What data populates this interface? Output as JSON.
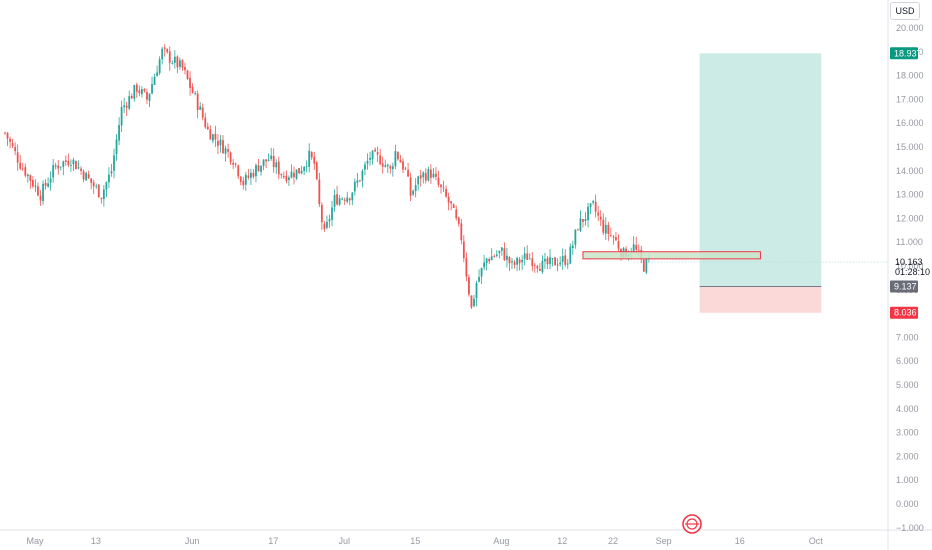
{
  "toolbar": {
    "currency": "USD"
  },
  "chart_data": {
    "type": "candlestick",
    "y_range": [
      -1.0,
      20.0
    ],
    "y_ticks": [
      20.0,
      19.0,
      18.0,
      17.0,
      16.0,
      15.0,
      14.0,
      13.0,
      12.0,
      11.0,
      10.0,
      9.0,
      8.0,
      7.0,
      6.0,
      5.0,
      4.0,
      3.0,
      2.0,
      1.0,
      0.0,
      -1.0
    ],
    "y_tick_labels": [
      "20.000",
      "19.000",
      "18.000",
      "17.000",
      "16.000",
      "15.000",
      "14.000",
      "13.000",
      "12.000",
      "11.000",
      "10.000",
      "9.000",
      "8.000",
      "7.000",
      "6.000",
      "5.000",
      "4.000",
      "3.000",
      "2.000",
      "1.000",
      "0.000",
      "−1.000"
    ],
    "x_tick_labels": [
      "May",
      "13",
      "Jun",
      "17",
      "Jul",
      "15",
      "Aug",
      "12",
      "22",
      "Sep",
      "16",
      "Oct"
    ],
    "x_tick_days": [
      0,
      12,
      31,
      47,
      61,
      75,
      92,
      104,
      114,
      124,
      139,
      154
    ],
    "grid": false,
    "price_path": [
      [
        0,
        15.6
      ],
      [
        3,
        14.3
      ],
      [
        7,
        13.0
      ],
      [
        10,
        14.2
      ],
      [
        13,
        14.5
      ],
      [
        15,
        14.0
      ],
      [
        19,
        13.0
      ],
      [
        21,
        14.0
      ],
      [
        23,
        16.6
      ],
      [
        26,
        17.5
      ],
      [
        28,
        17.0
      ],
      [
        31,
        19.0
      ],
      [
        35,
        18.3
      ],
      [
        38,
        16.8
      ],
      [
        40,
        15.7
      ],
      [
        43,
        15.0
      ],
      [
        45,
        14.5
      ],
      [
        47,
        13.5
      ],
      [
        50,
        14.2
      ],
      [
        52,
        14.5
      ],
      [
        55,
        13.8
      ],
      [
        58,
        14.0
      ],
      [
        60,
        14.6
      ],
      [
        61,
        14.3
      ],
      [
        62,
        12.5
      ],
      [
        63,
        11.3
      ],
      [
        65,
        12.8
      ],
      [
        68,
        13.0
      ],
      [
        70,
        13.7
      ],
      [
        72,
        14.6
      ],
      [
        74,
        14.5
      ],
      [
        76,
        14.0
      ],
      [
        77,
        14.8
      ],
      [
        79,
        14.0
      ],
      [
        80,
        13.0
      ],
      [
        82,
        13.8
      ],
      [
        84,
        13.9
      ],
      [
        86,
        13.2
      ],
      [
        88,
        12.5
      ],
      [
        90,
        11.2
      ],
      [
        92,
        8.2
      ],
      [
        93,
        9.3
      ],
      [
        95,
        10.3
      ],
      [
        98,
        10.6
      ],
      [
        100,
        10.0
      ],
      [
        103,
        10.4
      ],
      [
        106,
        10.0
      ],
      [
        109,
        10.2
      ],
      [
        111,
        10.3
      ],
      [
        112,
        10.9
      ],
      [
        113,
        11.7
      ],
      [
        116,
        12.5
      ],
      [
        118,
        11.6
      ],
      [
        120,
        11.2
      ],
      [
        122,
        10.5
      ],
      [
        124,
        10.8
      ],
      [
        126,
        10.0
      ],
      [
        127,
        10.2
      ]
    ],
    "current_price": "10.163",
    "countdown": "01:28:10",
    "annotations": {
      "zone": {
        "from_day": 114,
        "to_day": 149,
        "low": 10.3,
        "high": 10.6
      },
      "long_position": {
        "from_day": 137,
        "to_day": 161,
        "entry": 9.137,
        "target": 18.937,
        "stop": 8.036
      }
    },
    "price_tags": [
      {
        "value": "18.937",
        "color": "#089981"
      },
      {
        "value": "9.137",
        "color": "#6a6d78"
      },
      {
        "value": "8.036",
        "color": "#f23645"
      }
    ],
    "colors": {
      "up": "#26a69a",
      "down": "#ef5350",
      "target_fill": "#cdebe6",
      "stop_fill": "#fcd9d9",
      "zone_fill": "#c8e6c9",
      "zone_border": "#f23645"
    }
  }
}
